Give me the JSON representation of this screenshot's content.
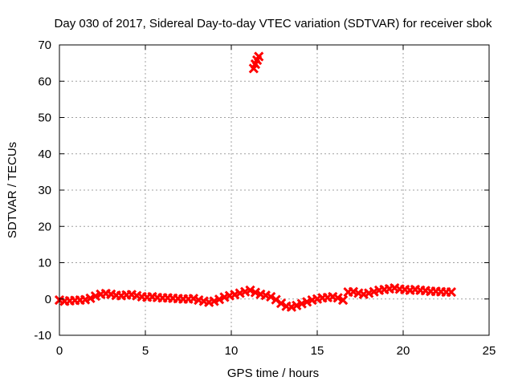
{
  "chart_data": {
    "type": "scatter",
    "title": "Day 030 of 2017, Sidereal Day-to-day VTEC variation (SDTVAR) for receiver sbok",
    "xlabel": "GPS time / hours",
    "ylabel": "SDTVAR / TECUs",
    "xlim": [
      0,
      25
    ],
    "ylim": [
      -10,
      70
    ],
    "xticks": [
      0,
      5,
      10,
      15,
      20,
      25
    ],
    "yticks": [
      -10,
      0,
      10,
      20,
      30,
      40,
      50,
      60,
      70
    ],
    "grid": true,
    "color": "#ff0000",
    "series": [
      {
        "name": "SDTVAR",
        "values": [
          [
            0.0,
            -0.3
          ],
          [
            0.3,
            -0.6
          ],
          [
            0.6,
            -0.5
          ],
          [
            0.9,
            -0.4
          ],
          [
            1.2,
            -0.3
          ],
          [
            1.5,
            -0.2
          ],
          [
            1.8,
            0.2
          ],
          [
            2.1,
            0.8
          ],
          [
            2.4,
            1.3
          ],
          [
            2.7,
            1.5
          ],
          [
            3.0,
            1.3
          ],
          [
            3.3,
            1.0
          ],
          [
            3.6,
            0.9
          ],
          [
            3.9,
            1.1
          ],
          [
            4.2,
            1.2
          ],
          [
            4.5,
            0.9
          ],
          [
            4.8,
            0.6
          ],
          [
            5.1,
            0.5
          ],
          [
            5.4,
            0.6
          ],
          [
            5.7,
            0.4
          ],
          [
            6.0,
            0.3
          ],
          [
            6.3,
            0.3
          ],
          [
            6.6,
            0.2
          ],
          [
            6.9,
            0.1
          ],
          [
            7.2,
            0.0
          ],
          [
            7.5,
            0.0
          ],
          [
            7.8,
            0.1
          ],
          [
            8.1,
            -0.3
          ],
          [
            8.4,
            -0.6
          ],
          [
            8.7,
            -0.9
          ],
          [
            9.0,
            -0.6
          ],
          [
            9.3,
            -0.1
          ],
          [
            9.6,
            0.5
          ],
          [
            9.9,
            0.9
          ],
          [
            10.2,
            1.2
          ],
          [
            10.5,
            1.6
          ],
          [
            10.8,
            2.0
          ],
          [
            11.1,
            2.4
          ],
          [
            11.4,
            1.8
          ],
          [
            11.7,
            1.3
          ],
          [
            12.0,
            1.0
          ],
          [
            12.3,
            0.6
          ],
          [
            12.6,
            -0.2
          ],
          [
            12.9,
            -1.2
          ],
          [
            13.2,
            -2.0
          ],
          [
            13.5,
            -2.2
          ],
          [
            13.8,
            -1.8
          ],
          [
            14.1,
            -1.3
          ],
          [
            14.4,
            -0.8
          ],
          [
            14.7,
            -0.3
          ],
          [
            15.0,
            0.0
          ],
          [
            15.3,
            0.3
          ],
          [
            15.6,
            0.4
          ],
          [
            15.9,
            0.6
          ],
          [
            16.2,
            0.3
          ],
          [
            16.5,
            -0.3
          ],
          [
            16.8,
            1.9
          ],
          [
            17.1,
            2.0
          ],
          [
            17.4,
            1.6
          ],
          [
            17.7,
            1.3
          ],
          [
            18.0,
            1.6
          ],
          [
            18.3,
            2.0
          ],
          [
            18.6,
            2.4
          ],
          [
            18.9,
            2.6
          ],
          [
            19.2,
            2.8
          ],
          [
            19.5,
            3.0
          ],
          [
            19.8,
            2.7
          ],
          [
            20.1,
            2.6
          ],
          [
            20.4,
            2.4
          ],
          [
            20.7,
            2.6
          ],
          [
            21.0,
            2.4
          ],
          [
            21.3,
            2.3
          ],
          [
            21.6,
            2.1
          ],
          [
            21.9,
            2.1
          ],
          [
            22.2,
            2.0
          ],
          [
            22.5,
            1.9
          ],
          [
            22.8,
            1.9
          ],
          [
            11.3,
            63.5
          ],
          [
            11.4,
            64.7
          ],
          [
            11.5,
            65.8
          ],
          [
            11.6,
            66.8
          ]
        ]
      }
    ]
  }
}
